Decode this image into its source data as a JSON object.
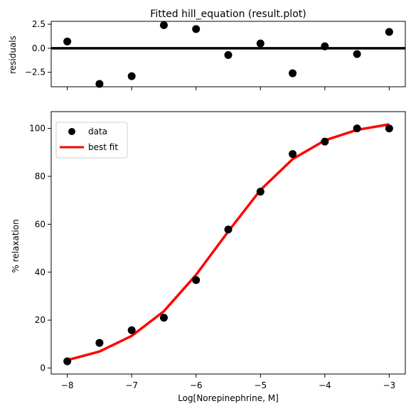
{
  "chart_data": [
    {
      "type": "scatter",
      "title": "Fitted hill_equation (result.plot)",
      "xlabel": "",
      "ylabel": "residuals",
      "xlim": [
        -8.25,
        -2.75
      ],
      "ylim": [
        -4.0,
        2.8
      ],
      "yticks": [
        2.5,
        0.0,
        -2.5
      ],
      "ytick_labels": [
        "2.5",
        "0.0",
        "−2.5"
      ],
      "xticks": [
        -8,
        -7,
        -6,
        -5,
        -4,
        -3
      ],
      "zero_line": 0,
      "x": [
        -8,
        -7.5,
        -7,
        -6.5,
        -6,
        -5.5,
        -5,
        -4.5,
        -4,
        -3.5,
        -3
      ],
      "residuals": [
        0.7,
        -3.7,
        -2.9,
        2.4,
        2.0,
        -0.7,
        0.5,
        -2.6,
        0.2,
        -0.6,
        1.7
      ]
    },
    {
      "type": "line",
      "title": "",
      "xlabel": "Log[Norepinephrine, M]",
      "ylabel": "% relaxation",
      "xlim": [
        -8.25,
        -2.75
      ],
      "ylim": [
        -2.5,
        107
      ],
      "xticks": [
        -8,
        -7,
        -6,
        -5,
        -4,
        -3
      ],
      "xtick_labels": [
        "−8",
        "−7",
        "−6",
        "−5",
        "−4",
        "−3"
      ],
      "yticks": [
        0,
        20,
        40,
        60,
        80,
        100
      ],
      "ytick_labels": [
        "0",
        "20",
        "40",
        "60",
        "80",
        "100"
      ],
      "legend_position": "top-left",
      "series": [
        {
          "name": "data",
          "kind": "scatter",
          "color": "#000000",
          "x": [
            -8,
            -7.5,
            -7,
            -6.5,
            -6,
            -5.5,
            -5,
            -4.5,
            -4,
            -3.5,
            -3
          ],
          "values": [
            2.8,
            10.5,
            15.8,
            21.0,
            36.7,
            57.8,
            73.6,
            89.3,
            94.5,
            100.0,
            100.0
          ]
        },
        {
          "name": "best fit",
          "kind": "line",
          "color": "#ff0000",
          "x": [
            -8,
            -7.5,
            -7,
            -6.5,
            -6,
            -5.5,
            -5,
            -4.5,
            -4,
            -3.5,
            -3
          ],
          "values": [
            3.3,
            6.9,
            13.4,
            23.7,
            38.9,
            57.0,
            74.3,
            87.2,
            95.0,
            99.4,
            101.7
          ]
        }
      ]
    }
  ]
}
